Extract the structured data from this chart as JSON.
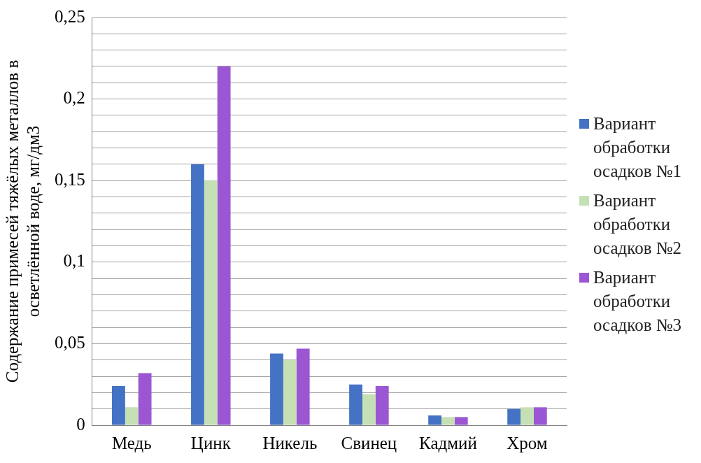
{
  "chart_data": {
    "type": "bar",
    "ylabel": "Содержание примесей тяжёлых металлов в осветлённой воде, мг/дм3",
    "categories": [
      "Медь",
      "Цинк",
      "Никель",
      "Свинец",
      "Кадмий",
      "Хром"
    ],
    "series": [
      {
        "name": "Вариант обработки осадков №1",
        "color": "#4472c4",
        "values": [
          0.024,
          0.16,
          0.044,
          0.025,
          0.006,
          0.01
        ]
      },
      {
        "name": "Вариант обработки осадков №2",
        "color": "#c5e0b4",
        "values": [
          0.011,
          0.15,
          0.04,
          0.019,
          0.005,
          0.011
        ]
      },
      {
        "name": "Вариант обработки осадков №3",
        "color": "#9b57d3",
        "values": [
          0.032,
          0.22,
          0.047,
          0.024,
          0.005,
          0.011
        ]
      }
    ],
    "ylim": [
      0,
      0.25
    ],
    "yticks": [
      {
        "value": 0,
        "label": "0"
      },
      {
        "value": 0.01,
        "label": null
      },
      {
        "value": 0.02,
        "label": null
      },
      {
        "value": 0.03,
        "label": null
      },
      {
        "value": 0.04,
        "label": null
      },
      {
        "value": 0.05,
        "label": "0,05"
      },
      {
        "value": 0.06,
        "label": null
      },
      {
        "value": 0.07,
        "label": null
      },
      {
        "value": 0.08,
        "label": null
      },
      {
        "value": 0.09,
        "label": null
      },
      {
        "value": 0.1,
        "label": "0,1"
      },
      {
        "value": 0.11,
        "label": null
      },
      {
        "value": 0.12,
        "label": null
      },
      {
        "value": 0.13,
        "label": null
      },
      {
        "value": 0.14,
        "label": null
      },
      {
        "value": 0.15,
        "label": "0,15"
      },
      {
        "value": 0.16,
        "label": null
      },
      {
        "value": 0.17,
        "label": null
      },
      {
        "value": 0.18,
        "label": null
      },
      {
        "value": 0.19,
        "label": null
      },
      {
        "value": 0.2,
        "label": "0,2"
      },
      {
        "value": 0.21,
        "label": null
      },
      {
        "value": 0.22,
        "label": null
      },
      {
        "value": 0.23,
        "label": null
      },
      {
        "value": 0.24,
        "label": null
      },
      {
        "value": 0.25,
        "label": "0,25"
      }
    ],
    "grid": "y",
    "legend": "right"
  }
}
